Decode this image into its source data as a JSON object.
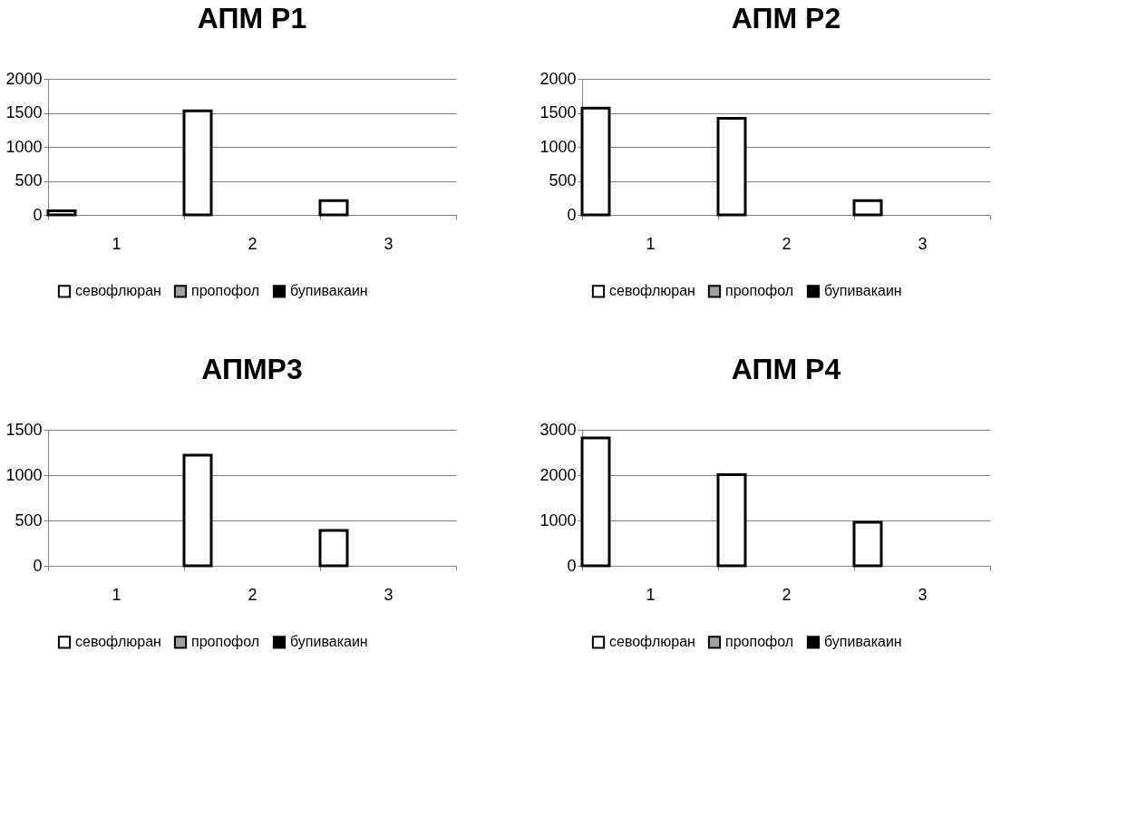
{
  "chart_data": [
    {
      "type": "bar",
      "title": "АПМ Р1",
      "categories": [
        "1",
        "2",
        "3"
      ],
      "ylim": [
        0,
        2000
      ],
      "yticks": [
        0,
        500,
        1000,
        1500,
        2000
      ],
      "grid": "y",
      "legend": "bottom",
      "series": [
        {
          "name": "севофлюран",
          "color": "#ffffff",
          "values": [
            60,
            1530,
            210
          ]
        },
        {
          "name": "пропофол",
          "color": "#a0a0a0",
          "values": [
            null,
            null,
            null
          ]
        },
        {
          "name": "бупивакаин",
          "color": "#000000",
          "values": [
            null,
            null,
            null
          ]
        }
      ]
    },
    {
      "type": "bar",
      "title": "АПМ Р2",
      "categories": [
        "1",
        "2",
        "3"
      ],
      "ylim": [
        0,
        2000
      ],
      "yticks": [
        0,
        500,
        1000,
        1500,
        2000
      ],
      "grid": "y",
      "legend": "bottom",
      "series": [
        {
          "name": "севофлюран",
          "color": "#ffffff",
          "values": [
            1570,
            1420,
            210
          ]
        },
        {
          "name": "пропофол",
          "color": "#a0a0a0",
          "values": [
            null,
            null,
            null
          ]
        },
        {
          "name": "бупивакаин",
          "color": "#000000",
          "values": [
            null,
            null,
            null
          ]
        }
      ]
    },
    {
      "type": "bar",
      "title": "АПМР3",
      "categories": [
        "1",
        "2",
        "3"
      ],
      "ylim": [
        0,
        1500
      ],
      "yticks": [
        0,
        500,
        1000,
        1500
      ],
      "grid": "y",
      "legend": "bottom",
      "series": [
        {
          "name": "севофлюран",
          "color": "#ffffff",
          "values": [
            null,
            1220,
            390
          ]
        },
        {
          "name": "пропофол",
          "color": "#a0a0a0",
          "values": [
            null,
            null,
            null
          ]
        },
        {
          "name": "бупивакаин",
          "color": "#000000",
          "values": [
            null,
            null,
            null
          ]
        }
      ]
    },
    {
      "type": "bar",
      "title": "АПМ Р4",
      "categories": [
        "1",
        "2",
        "3"
      ],
      "ylim": [
        0,
        3000
      ],
      "yticks": [
        0,
        1000,
        2000,
        3000
      ],
      "grid": "y",
      "legend": "bottom",
      "series": [
        {
          "name": "севофлюран",
          "color": "#ffffff",
          "values": [
            2820,
            2010,
            960
          ]
        },
        {
          "name": "пропофол",
          "color": "#a0a0a0",
          "values": [
            null,
            null,
            null
          ]
        },
        {
          "name": "бупивакаин",
          "color": "#000000",
          "values": [
            null,
            null,
            null
          ]
        }
      ]
    }
  ]
}
